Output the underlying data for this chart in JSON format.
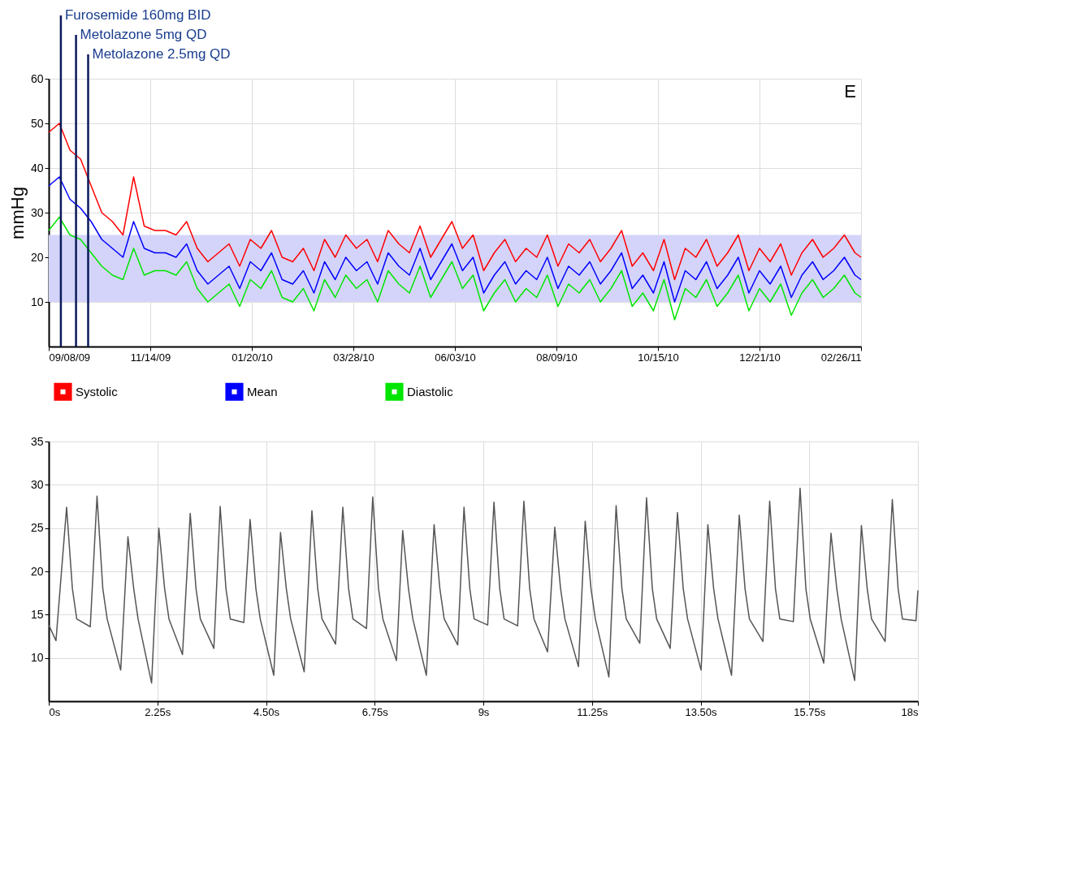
{
  "chart_data": [
    {
      "type": "line",
      "ylabel": "mmHg",
      "annotations": [
        "E"
      ],
      "x": [
        "2009-09-08",
        "2009-09-15",
        "2009-09-22",
        "2009-09-29",
        "2009-10-06",
        "2009-10-13",
        "2009-10-20",
        "2009-10-27",
        "2009-11-03",
        "2009-11-10",
        "2009-11-17",
        "2009-11-24",
        "2009-12-01",
        "2009-12-08",
        "2009-12-15",
        "2009-12-22",
        "2009-12-29",
        "2010-01-05",
        "2010-01-12",
        "2010-01-19",
        "2010-01-26",
        "2010-02-02",
        "2010-02-09",
        "2010-02-16",
        "2010-02-23",
        "2010-03-02",
        "2010-03-09",
        "2010-03-16",
        "2010-03-23",
        "2010-03-30",
        "2010-04-06",
        "2010-04-13",
        "2010-04-20",
        "2010-04-27",
        "2010-05-04",
        "2010-05-11",
        "2010-05-18",
        "2010-05-25",
        "2010-06-01",
        "2010-06-08",
        "2010-06-15",
        "2010-06-22",
        "2010-06-29",
        "2010-07-06",
        "2010-07-13",
        "2010-07-20",
        "2010-07-27",
        "2010-08-03",
        "2010-08-10",
        "2010-08-17",
        "2010-08-24",
        "2010-08-31",
        "2010-09-07",
        "2010-09-14",
        "2010-09-21",
        "2010-09-28",
        "2010-10-05",
        "2010-10-12",
        "2010-10-19",
        "2010-10-26",
        "2010-11-02",
        "2010-11-09",
        "2010-11-16",
        "2010-11-23",
        "2010-11-30",
        "2010-12-07",
        "2010-12-14",
        "2010-12-21",
        "2010-12-28",
        "2011-01-04",
        "2011-01-11",
        "2011-01-18",
        "2011-01-25",
        "2011-02-01",
        "2011-02-08",
        "2011-02-15",
        "2011-02-22",
        "2011-02-26"
      ],
      "series": [
        {
          "name": "Systolic",
          "color": "#ff0000",
          "values": [
            48,
            50,
            44,
            42,
            36,
            30,
            28,
            25,
            38,
            27,
            26,
            26,
            25,
            28,
            22,
            19,
            21,
            23,
            18,
            24,
            22,
            26,
            20,
            19,
            22,
            17,
            24,
            20,
            25,
            22,
            24,
            19,
            26,
            23,
            21,
            27,
            20,
            24,
            28,
            22,
            25,
            17,
            21,
            24,
            19,
            22,
            20,
            25,
            18,
            23,
            21,
            24,
            19,
            22,
            26,
            18,
            21,
            17,
            24,
            15,
            22,
            20,
            24,
            18,
            21,
            25,
            17,
            22,
            19,
            23,
            16,
            21,
            24,
            20,
            22,
            25,
            21,
            20
          ]
        },
        {
          "name": "Mean",
          "color": "#0000ff",
          "values": [
            36,
            38,
            33,
            31,
            28,
            24,
            22,
            20,
            28,
            22,
            21,
            21,
            20,
            23,
            17,
            14,
            16,
            18,
            13,
            19,
            17,
            21,
            15,
            14,
            17,
            12,
            19,
            15,
            20,
            17,
            19,
            14,
            21,
            18,
            16,
            22,
            15,
            19,
            23,
            17,
            20,
            12,
            16,
            19,
            14,
            17,
            15,
            20,
            13,
            18,
            16,
            19,
            14,
            17,
            21,
            13,
            16,
            12,
            19,
            10,
            17,
            15,
            19,
            13,
            16,
            20,
            12,
            17,
            14,
            18,
            11,
            16,
            19,
            15,
            17,
            20,
            16,
            15
          ]
        },
        {
          "name": "Diastolic",
          "color": "#00e600",
          "values": [
            26,
            29,
            25,
            24,
            21,
            18,
            16,
            15,
            22,
            16,
            17,
            17,
            16,
            19,
            13,
            10,
            12,
            14,
            9,
            15,
            13,
            17,
            11,
            10,
            13,
            8,
            15,
            11,
            16,
            13,
            15,
            10,
            17,
            14,
            12,
            18,
            11,
            15,
            19,
            13,
            16,
            8,
            12,
            15,
            10,
            13,
            11,
            16,
            9,
            14,
            12,
            15,
            10,
            13,
            17,
            9,
            12,
            8,
            15,
            6,
            13,
            11,
            15,
            9,
            12,
            16,
            8,
            13,
            10,
            14,
            7,
            12,
            15,
            11,
            13,
            16,
            12,
            11
          ]
        }
      ],
      "xlim": [
        "2009-09-08",
        "2011-02-26"
      ],
      "xticks": [
        {
          "value": "2009-09-08",
          "label": "09/08/09"
        },
        {
          "value": "2009-11-14",
          "label": "11/14/09"
        },
        {
          "value": "2010-01-20",
          "label": "01/20/10"
        },
        {
          "value": "2010-03-28",
          "label": "03/28/10"
        },
        {
          "value": "2010-06-03",
          "label": "06/03/10"
        },
        {
          "value": "2010-08-09",
          "label": "08/09/10"
        },
        {
          "value": "2010-10-15",
          "label": "10/15/10"
        },
        {
          "value": "2010-12-21",
          "label": "12/21/10"
        },
        {
          "value": "2011-02-26",
          "label": "02/26/11"
        }
      ],
      "ylim": [
        0,
        60
      ],
      "yticks": [
        10,
        20,
        30,
        40,
        50,
        60
      ],
      "bands": [
        {
          "axis": "y",
          "from": 10,
          "to": 25,
          "color": "#d4d4fa"
        }
      ],
      "ref_lines": [
        {
          "axis": "x",
          "value": "2009-09-16",
          "label": "Furosemide 160mg BID",
          "color": "#0a1a5a"
        },
        {
          "axis": "x",
          "value": "2009-09-26",
          "label": "Metolazone 5mg QD",
          "color": "#0a1a5a"
        },
        {
          "axis": "x",
          "value": "2009-10-04",
          "label": "Metolazone 2.5mg QD",
          "color": "#0a1a5a"
        }
      ],
      "grid": true,
      "legend": "bottom",
      "line_style": "solid",
      "marker": "none"
    },
    {
      "type": "line",
      "x": [
        0,
        0.15,
        0.37,
        0.49,
        0.58,
        0.86,
        1.0,
        1.12,
        1.21,
        1.49,
        1.64,
        1.76,
        1.85,
        2.13,
        2.28,
        2.4,
        2.49,
        2.77,
        2.93,
        3.05,
        3.14,
        3.42,
        3.55,
        3.67,
        3.76,
        4.04,
        4.17,
        4.29,
        4.38,
        4.66,
        4.8,
        4.92,
        5.01,
        5.29,
        5.45,
        5.57,
        5.66,
        5.94,
        6.09,
        6.21,
        6.3,
        6.58,
        6.71,
        6.83,
        6.92,
        7.2,
        7.33,
        7.45,
        7.54,
        7.82,
        7.98,
        8.1,
        8.19,
        8.47,
        8.6,
        8.72,
        8.81,
        9.09,
        9.22,
        9.34,
        9.43,
        9.71,
        9.84,
        9.96,
        10.05,
        10.33,
        10.48,
        10.6,
        10.69,
        10.97,
        11.11,
        11.23,
        11.32,
        11.6,
        11.75,
        11.87,
        11.96,
        12.24,
        12.38,
        12.5,
        12.59,
        12.87,
        13.02,
        13.14,
        13.23,
        13.51,
        13.65,
        13.77,
        13.86,
        14.14,
        14.3,
        14.42,
        14.51,
        14.79,
        14.93,
        15.05,
        15.14,
        15.42,
        15.56,
        15.68,
        15.77,
        16.05,
        16.2,
        16.32,
        16.41,
        16.69,
        16.83,
        16.95,
        17.04,
        17.32,
        17.47,
        17.59,
        17.68,
        17.96,
        18
      ],
      "series": [
        {
          "color": "#555555",
          "values": [
            13.8,
            12.0,
            27.4,
            18,
            14.5,
            13.6,
            28.7,
            18,
            14.5,
            8.6,
            24.0,
            18,
            14.5,
            7.1,
            25.0,
            18,
            14.5,
            10.4,
            26.7,
            18,
            14.5,
            11.1,
            27.5,
            18,
            14.5,
            14.1,
            26.0,
            18,
            14.5,
            8.0,
            24.5,
            18,
            14.5,
            8.4,
            27.0,
            18,
            14.5,
            11.6,
            27.4,
            18,
            14.5,
            13.4,
            28.6,
            18,
            14.5,
            9.7,
            24.7,
            18,
            14.5,
            8.0,
            25.4,
            18,
            14.5,
            11.5,
            27.4,
            18,
            14.5,
            13.8,
            28.0,
            18,
            14.5,
            13.7,
            28.1,
            18,
            14.5,
            10.7,
            25.1,
            18,
            14.5,
            9.0,
            25.8,
            18,
            14.5,
            7.8,
            27.6,
            18,
            14.5,
            11.7,
            28.5,
            18,
            14.5,
            11.1,
            26.8,
            18,
            14.5,
            8.6,
            25.4,
            18,
            14.5,
            8.0,
            26.5,
            18,
            14.5,
            11.9,
            28.1,
            18,
            14.5,
            14.2,
            29.6,
            18,
            14.5,
            9.4,
            24.4,
            18,
            14.5,
            7.4,
            25.3,
            18,
            14.5,
            11.9,
            28.3,
            18,
            14.5,
            14.3,
            17.8
          ]
        }
      ],
      "xlim": [
        0,
        18
      ],
      "xticks": [
        {
          "value": 0,
          "label": "0s"
        },
        {
          "value": 2.25,
          "label": "2.25s"
        },
        {
          "value": 4.5,
          "label": "4.50s"
        },
        {
          "value": 6.75,
          "label": "6.75s"
        },
        {
          "value": 9,
          "label": "9s"
        },
        {
          "value": 11.25,
          "label": "11.25s"
        },
        {
          "value": 13.5,
          "label": "13.50s"
        },
        {
          "value": 15.75,
          "label": "15.75s"
        },
        {
          "value": 18,
          "label": "18s"
        }
      ],
      "ylim": [
        5,
        35
      ],
      "yticks": [
        10,
        15,
        20,
        25,
        30,
        35
      ],
      "grid": true,
      "legend": false,
      "line_style": "solid",
      "marker": "none"
    }
  ]
}
